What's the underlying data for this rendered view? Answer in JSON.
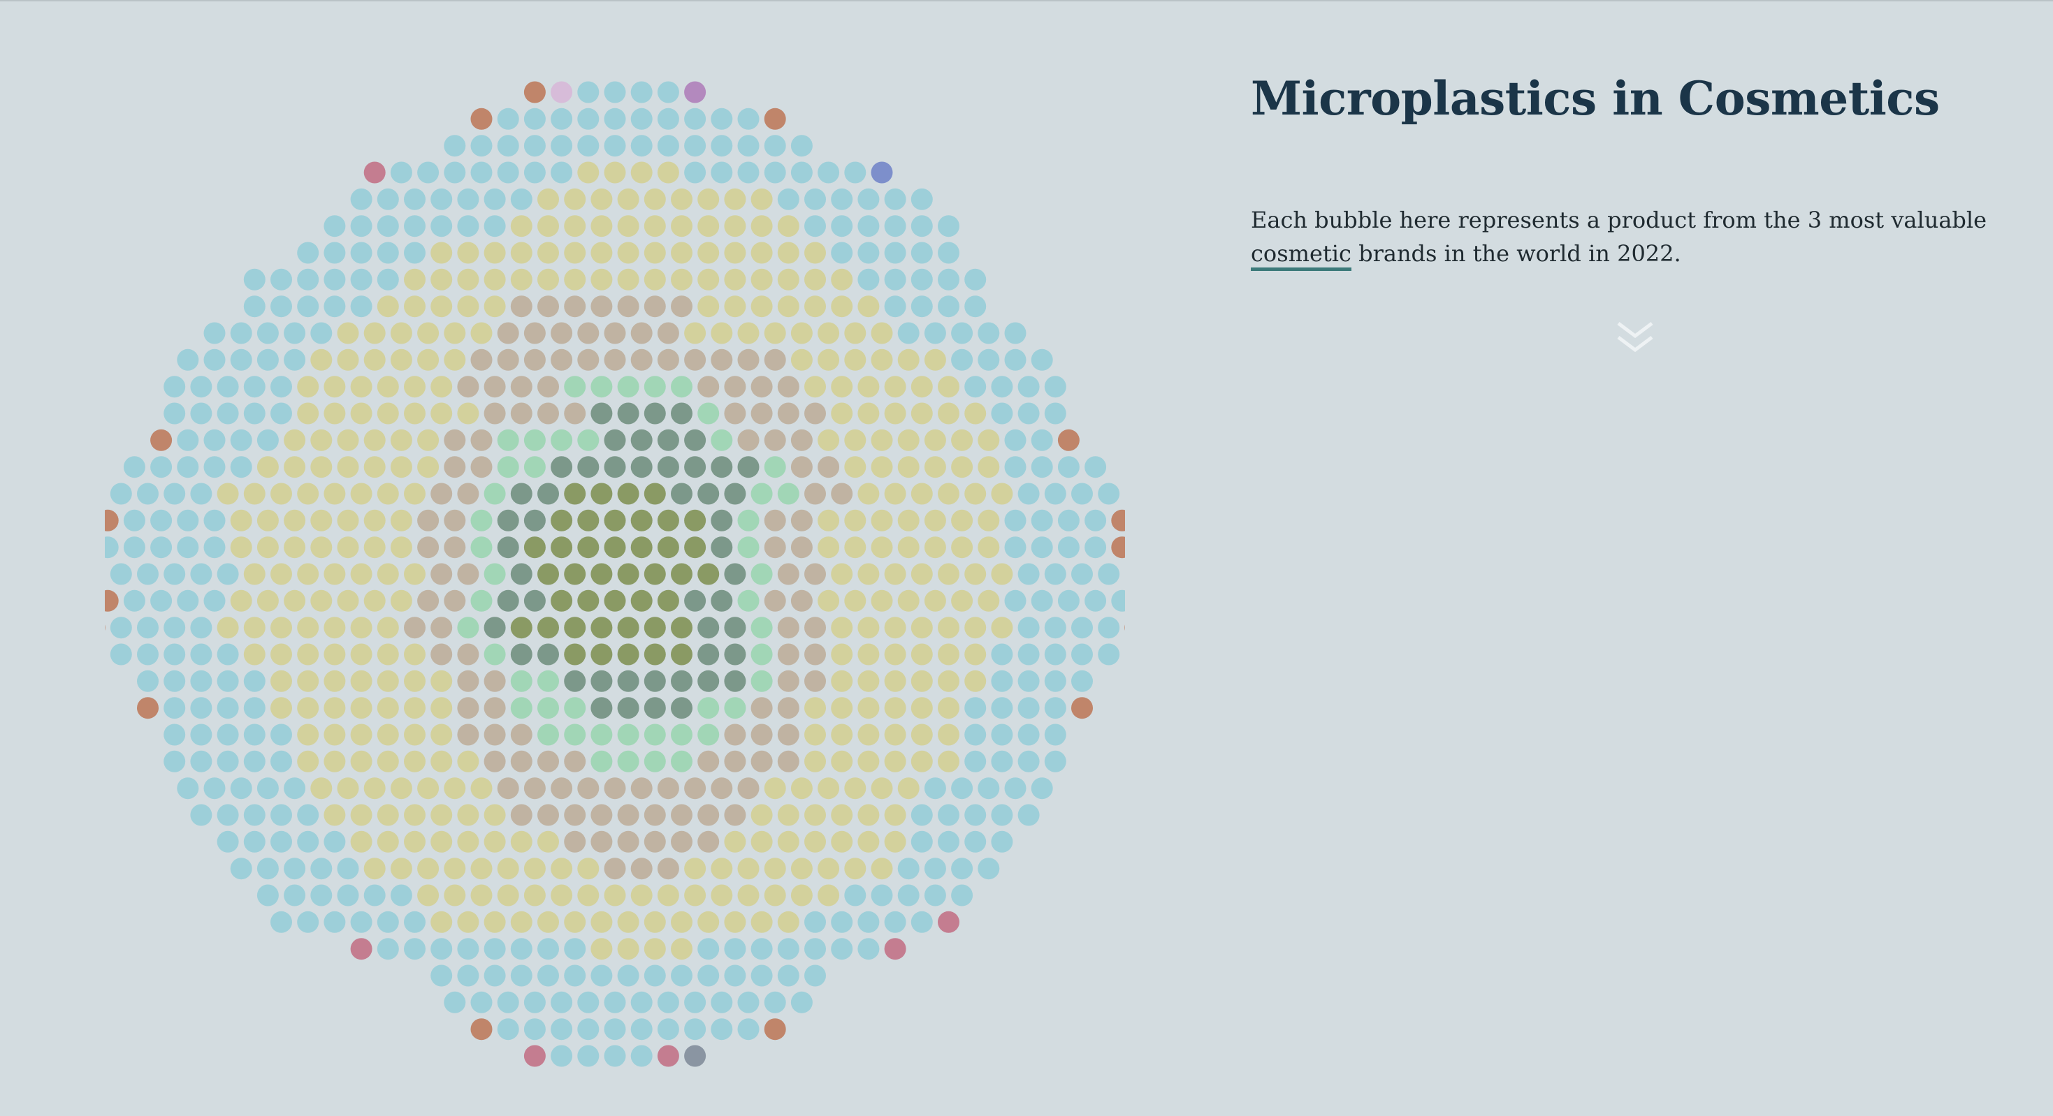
{
  "page": {
    "title": "Microplastics in Cosmetics",
    "intro": {
      "part1": "Each bubble here represents a product from the 3 most valuable",
      "link_text": "cosmetic",
      "part2": " brands in the world in 2022."
    },
    "scroll_icon": "double-chevron-down-icon"
  },
  "colors": {
    "background": "#d3dce0",
    "title": "#1b3548",
    "link_underline": "#3c7a7a",
    "chevron": "#eef2f4"
  },
  "chart_data": {
    "type": "bubble-grid",
    "title": "",
    "category_colors": {
      "dark-olive": "#8a9a64",
      "dark-teal": "#7c988a",
      "mint": "#a1d6b6",
      "taupe": "#c0b3a2",
      "khaki": "#d3d19c",
      "light-blue": "#9dcfd9",
      "rust": "#c0856a",
      "rose": "#c47d90",
      "lilac": "#d7bcd9",
      "purple": "#b389be",
      "blue-violet": "#7d8fcb",
      "slate": "#8a95a2"
    },
    "rows": [
      "......RLBBBBP......",
      "....RBBBBBBBBBBR...",
      "...BBBBBBBBBBBBBB..",
      ".DBBBBBBBKKKKBBBBBBBV",
      "..BBBBBBBKKKKKKKKKBBBBBB",
      "..BBBBBBBKKKKKKKKKKKBBBBBB",
      ".BBBBBKKKKKKKKKKKKKKKBBBBB",
      "BBBBBBKKKKKKKKKKKKKKKKKBBBBB",
      "BBBBBKKKKKTTTTTTTKKKKKKKBBBB",
      "BBBBBKKKKKKTTTTTTTKKKKKKKKBBBBB",
      "BBBBBKKKKKKTTTTTTTTTTTTKKKKKKBBBB",
      "BBBBBKKKKKKTTTTMMMMMTTTTKKKKKKBBBB",
      "BBBBBKKKKKKKTTTTAAAAMTTTTKKKKKKBBB",
      "RBBBBKKKKKKTTMMMMAAAAMTTTKKKKKKKBBR",
      "BBBBBKKKKKKKTTMMAAAAAAAAMTTKKKKKKBBBB",
      "BBBBKKKKKKKKTTMAAOOOOAAAMMTTKKKKKKBBBB",
      "RBBBBKKKKKKKTTMAAOOOOOOAMTTKKKKKKKBBBBR",
      "BBBBBKKKKKKKTTMAOOOOOOOAMTTKKKKKKKBBBBR",
      "BBBBBKKKKKKKTTMAOOOOOOOAMTTKKKKKKKBBBB",
      "RBBBBKKKKKKKTTMAAOOOOOAAMTTKKKKKKKBBBBB",
      "RBBBBKKKKKKKTTMAOOOOOOOAAMTTKKKKKKKBBBBR",
      "BBBBBKKKKKKKTTMAAOOOOOAAMTTKKKKKKBBBBB",
      "BBBBBKKKKKKKTTMMAAAAAAAMTTKKKKKKBBBB",
      "RBBBBKKKKKKKTTMMMAAAAMMTTKKKKKKBBBBR",
      "BBBBBKKKKKKTTTMMMMMMMTTTKKKKKKBBBB",
      "BBBBBKKKKKKKTTTTMMMMTTTTKKKKKKBBBB",
      "BBBBBKKKKKKKTTTTTTTTTTKKKKKKBBBBB",
      "BBBBBKKKKKKKTTTTTTTTTKKKKKKBBBBB",
      "BBBBBKKKKKKKKTTTTTTKKKKKKKBBBB",
      "BBBBBKKKKKKKKKTTTKKKKKKKKBBBB",
      "BBBBBBKKKKKKKKKKKKKKKKBBBBB",
      "BBBBBBKKKKKKKKKKKKKKBBBBBD",
      ".DBBBBBBBBKKKKBBBBBBBD",
      "...BBBBBBBBBBBBBBB..",
      "...BBBBBBBBBBBBBB..",
      "....RBBBBBBBBBBR...",
      "......DBBBBDS......"
    ],
    "key": {
      "O": "dark-olive",
      "A": "dark-teal",
      "M": "mint",
      "T": "taupe",
      "K": "khaki",
      "B": "light-blue",
      "R": "rust",
      "D": "rose",
      "L": "lilac",
      "P": "purple",
      "V": "blue-violet",
      "S": "slate"
    }
  }
}
